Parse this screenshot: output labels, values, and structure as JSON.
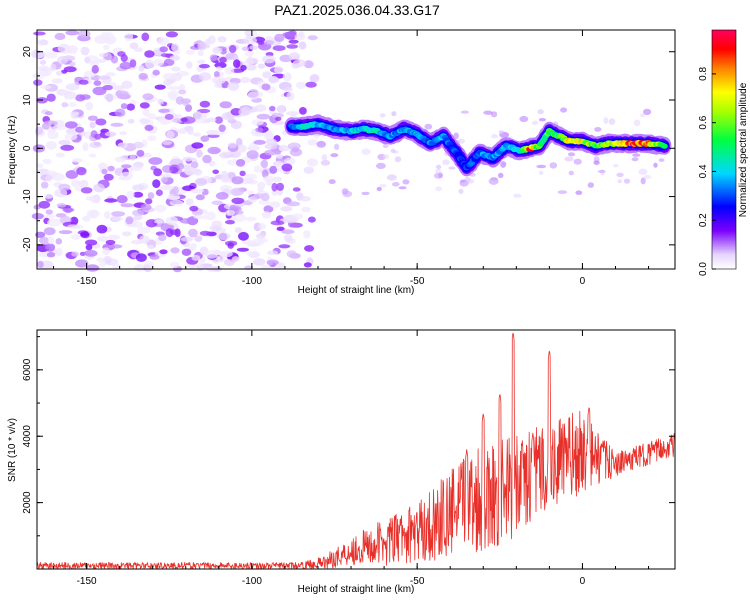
{
  "title": "PAZ1.2025.036.04.33.G17",
  "spectrogram": {
    "type": "heatmap",
    "xlabel": "Height of straight line (km)",
    "ylabel": "Frequency (Hz)",
    "xlim": [
      -165,
      28
    ],
    "ylim": [
      -25,
      24.5
    ],
    "xticks": [
      -150,
      -100,
      -50,
      0
    ],
    "yticks": [
      -20,
      -10,
      0,
      10,
      20
    ],
    "colorbar": {
      "label": "Normalized spectral amplitude",
      "range": [
        0.0,
        0.98
      ],
      "ticks": [
        0.0,
        0.2,
        0.4,
        0.6,
        0.8
      ]
    },
    "noise_region": {
      "x": [
        -165,
        -80
      ],
      "y": [
        -25,
        24
      ]
    },
    "ridge": [
      {
        "x": -88,
        "f": 4.5,
        "a": 0.32
      },
      {
        "x": -84,
        "f": 4.5,
        "a": 0.45
      },
      {
        "x": -80,
        "f": 5.0,
        "a": 0.42
      },
      {
        "x": -75,
        "f": 4.0,
        "a": 0.38
      },
      {
        "x": -70,
        "f": 3.5,
        "a": 0.4
      },
      {
        "x": -66,
        "f": 4.0,
        "a": 0.45
      },
      {
        "x": -62,
        "f": 3.5,
        "a": 0.43
      },
      {
        "x": -58,
        "f": 2.5,
        "a": 0.38
      },
      {
        "x": -54,
        "f": 4.0,
        "a": 0.35
      },
      {
        "x": -50,
        "f": 3.0,
        "a": 0.4
      },
      {
        "x": -46,
        "f": 1.0,
        "a": 0.35
      },
      {
        "x": -42,
        "f": 2.5,
        "a": 0.38
      },
      {
        "x": -38,
        "f": -1.0,
        "a": 0.3
      },
      {
        "x": -35,
        "f": -4.0,
        "a": 0.3
      },
      {
        "x": -31,
        "f": -1.0,
        "a": 0.35
      },
      {
        "x": -27,
        "f": -2.0,
        "a": 0.38
      },
      {
        "x": -23,
        "f": 0.5,
        "a": 0.4
      },
      {
        "x": -19,
        "f": -0.5,
        "a": 0.4
      },
      {
        "x": -16,
        "f": 0.0,
        "a": 0.92
      },
      {
        "x": -13,
        "f": 0.5,
        "a": 0.6
      },
      {
        "x": -10,
        "f": 3.5,
        "a": 0.55
      },
      {
        "x": -7,
        "f": 2.5,
        "a": 0.6
      },
      {
        "x": -4,
        "f": 1.5,
        "a": 0.75
      },
      {
        "x": 0,
        "f": 1.5,
        "a": 0.75
      },
      {
        "x": 4,
        "f": 0.5,
        "a": 0.55
      },
      {
        "x": 8,
        "f": 1.0,
        "a": 0.65
      },
      {
        "x": 12,
        "f": 1.0,
        "a": 0.85
      },
      {
        "x": 16,
        "f": 1.0,
        "a": 0.95
      },
      {
        "x": 20,
        "f": 1.0,
        "a": 0.8
      },
      {
        "x": 25,
        "f": 0.5,
        "a": 0.6
      }
    ]
  },
  "snr": {
    "type": "line",
    "xlabel": "Height of straight line (km)",
    "ylabel": "SNR (10 * v/v)",
    "xlim": [
      -165,
      28
    ],
    "ylim": [
      0,
      7200
    ],
    "xticks": [
      -150,
      -100,
      -50,
      0
    ],
    "yticks": [
      2000,
      4000,
      6000
    ],
    "color": "#e8302a",
    "envelope": [
      {
        "x": -165,
        "lo": 0,
        "hi": 200
      },
      {
        "x": -85,
        "lo": 0,
        "hi": 200
      },
      {
        "x": -78,
        "lo": 0,
        "hi": 400
      },
      {
        "x": -70,
        "lo": 100,
        "hi": 1000
      },
      {
        "x": -60,
        "lo": 100,
        "hi": 1500
      },
      {
        "x": -50,
        "lo": 200,
        "hi": 2000
      },
      {
        "x": -40,
        "lo": 300,
        "hi": 3000
      },
      {
        "x": -30,
        "lo": 500,
        "hi": 4000
      },
      {
        "x": -20,
        "lo": 900,
        "hi": 4000
      },
      {
        "x": -10,
        "lo": 1800,
        "hi": 4500
      },
      {
        "x": 0,
        "lo": 2200,
        "hi": 4800
      },
      {
        "x": 10,
        "lo": 2800,
        "hi": 3500
      },
      {
        "x": 28,
        "lo": 3400,
        "hi": 4100
      }
    ],
    "peaks": [
      {
        "x": -35,
        "y": 3600
      },
      {
        "x": -30,
        "y": 4700
      },
      {
        "x": -25,
        "y": 5300
      },
      {
        "x": -21,
        "y": 7150
      },
      {
        "x": -15,
        "y": 4100
      },
      {
        "x": -10,
        "y": 6600
      },
      {
        "x": 2,
        "y": 4900
      },
      {
        "x": 28,
        "y": 4000
      }
    ]
  }
}
